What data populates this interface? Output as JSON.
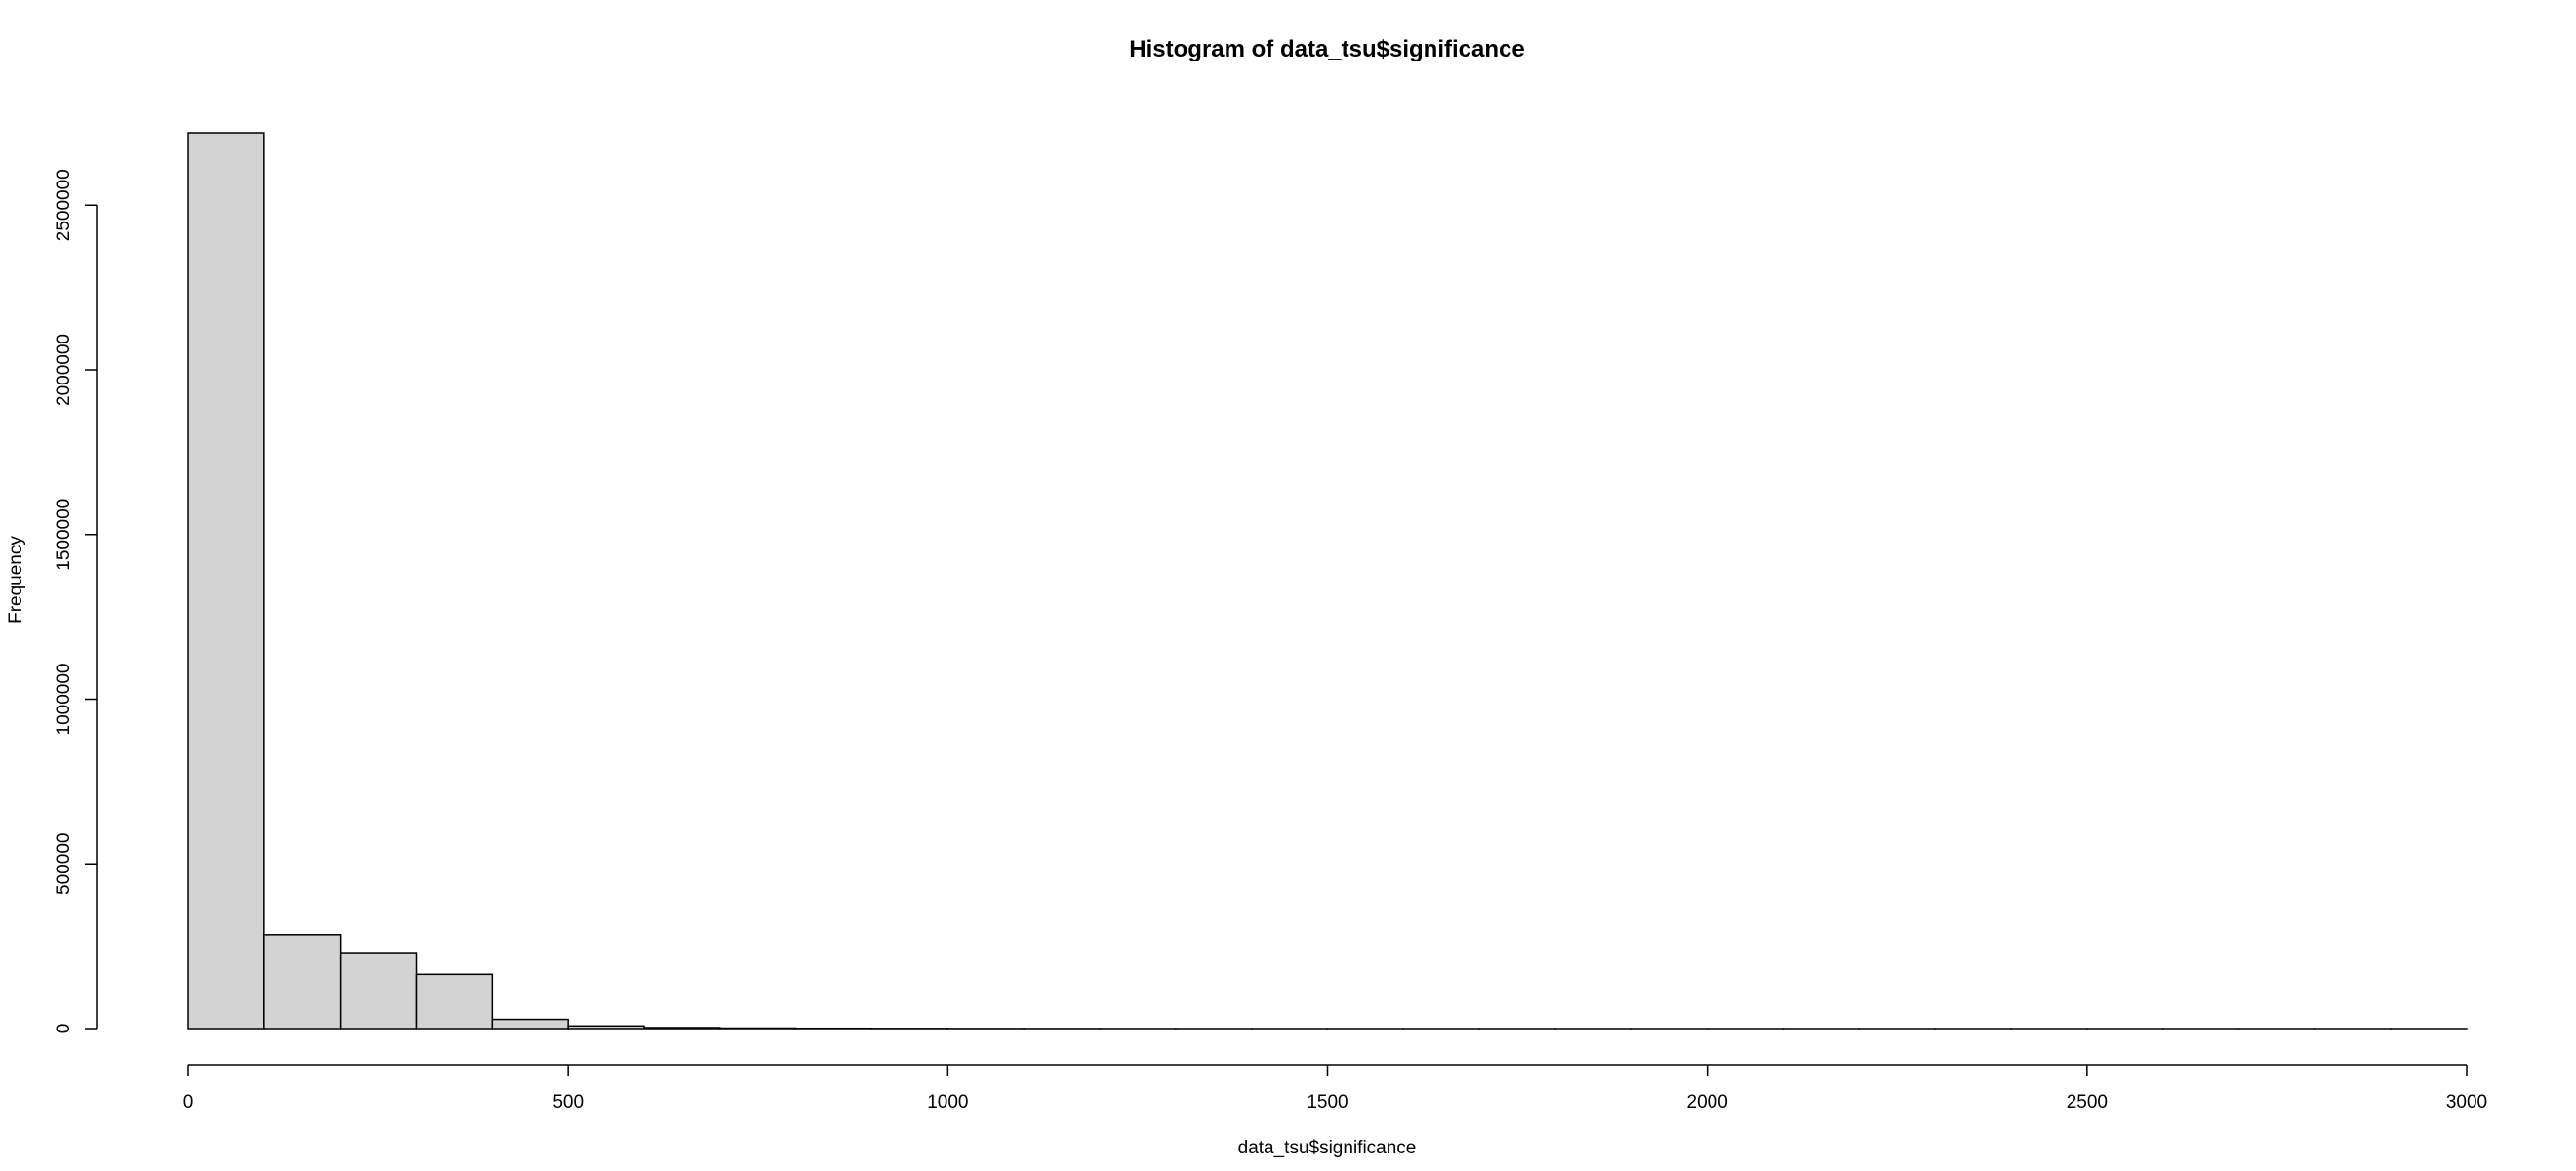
{
  "chart_data": {
    "type": "bar",
    "title": "Histogram of data_tsu$significance",
    "xlabel": "data_tsu$significance",
    "ylabel": "Frequency",
    "bar_color": "#d3d3d3",
    "bins": [
      {
        "start": 0,
        "end": 100,
        "count": 2720000
      },
      {
        "start": 100,
        "end": 200,
        "count": 285000
      },
      {
        "start": 200,
        "end": 300,
        "count": 228000
      },
      {
        "start": 300,
        "end": 400,
        "count": 165000
      },
      {
        "start": 400,
        "end": 500,
        "count": 28000
      },
      {
        "start": 500,
        "end": 600,
        "count": 8000
      },
      {
        "start": 600,
        "end": 700,
        "count": 3000
      },
      {
        "start": 700,
        "end": 800,
        "count": 1500
      },
      {
        "start": 800,
        "end": 900,
        "count": 800
      },
      {
        "start": 900,
        "end": 1000,
        "count": 500
      },
      {
        "start": 1000,
        "end": 1100,
        "count": 300
      },
      {
        "start": 1100,
        "end": 1200,
        "count": 200
      },
      {
        "start": 1200,
        "end": 1300,
        "count": 100
      },
      {
        "start": 1300,
        "end": 1400,
        "count": 60
      },
      {
        "start": 1400,
        "end": 1500,
        "count": 40
      },
      {
        "start": 1500,
        "end": 1600,
        "count": 25
      },
      {
        "start": 1600,
        "end": 1700,
        "count": 15
      },
      {
        "start": 1700,
        "end": 1800,
        "count": 10
      },
      {
        "start": 1800,
        "end": 1900,
        "count": 8
      },
      {
        "start": 1900,
        "end": 2000,
        "count": 5
      },
      {
        "start": 2000,
        "end": 2100,
        "count": 4
      },
      {
        "start": 2100,
        "end": 2200,
        "count": 3
      },
      {
        "start": 2200,
        "end": 2300,
        "count": 2
      },
      {
        "start": 2300,
        "end": 2400,
        "count": 2
      },
      {
        "start": 2400,
        "end": 2500,
        "count": 1
      },
      {
        "start": 2500,
        "end": 2600,
        "count": 1
      },
      {
        "start": 2600,
        "end": 2700,
        "count": 1
      },
      {
        "start": 2700,
        "end": 2800,
        "count": 1
      },
      {
        "start": 2800,
        "end": 2900,
        "count": 1
      },
      {
        "start": 2900,
        "end": 3000,
        "count": 1
      }
    ],
    "xlim": [
      0,
      3000
    ],
    "ylim": [
      0,
      2720000
    ],
    "x_ticks": [
      0,
      500,
      1000,
      1500,
      2000,
      2500,
      3000
    ],
    "y_ticks": [
      0,
      500000,
      1000000,
      1500000,
      2000000,
      2500000
    ],
    "grid": false,
    "legend": "none"
  }
}
